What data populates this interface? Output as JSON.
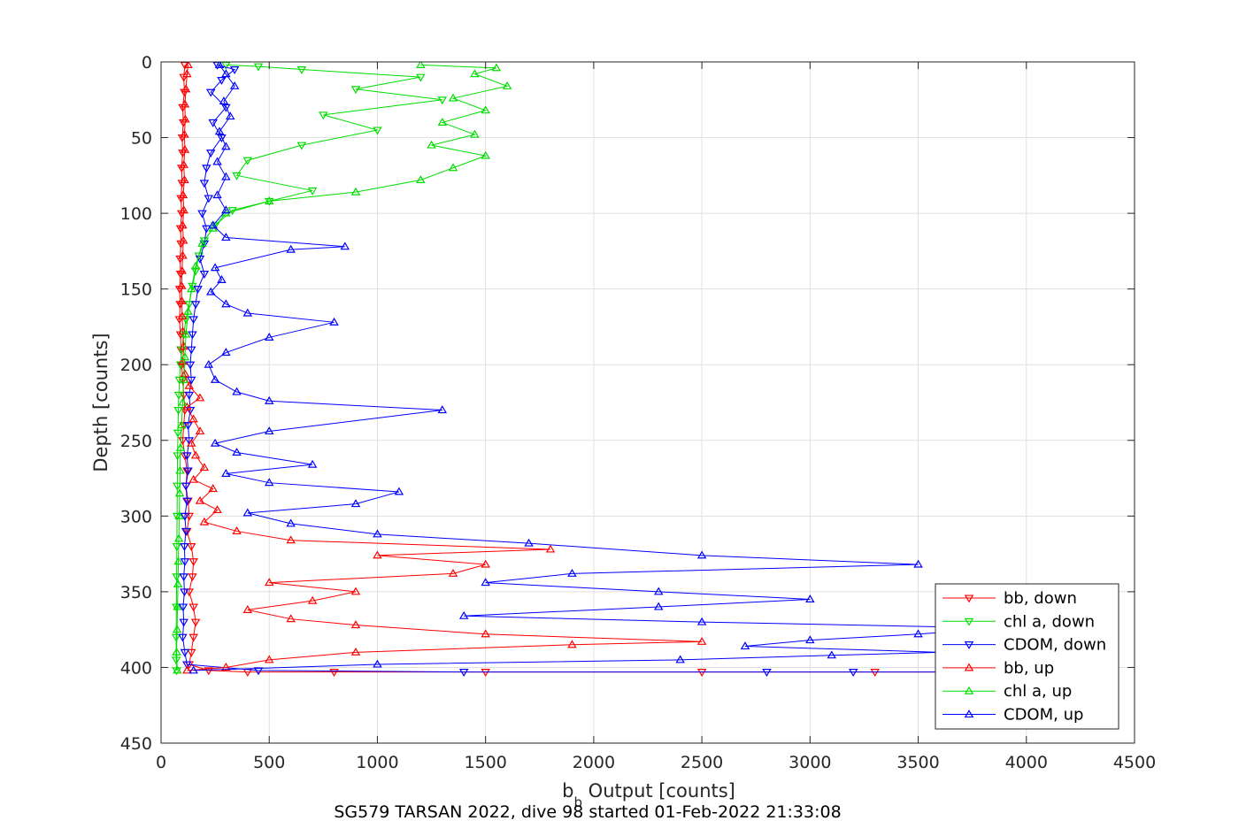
{
  "chart_data": {
    "type": "line",
    "title": "",
    "caption": "SG579 TARSAN 2022, dive 98 started 01-Feb-2022 21:33:08",
    "xlabel_main": "b",
    "xlabel_sub": "b",
    "xlabel_rest": " Output [counts]",
    "ylabel": "Depth [counts]",
    "xlim": [
      0,
      4500
    ],
    "ylim": [
      0,
      450
    ],
    "y_reversed": true,
    "grid": true,
    "legend_position": "bottom-right",
    "xticks": [
      "0",
      "500",
      "1000",
      "1500",
      "2000",
      "2500",
      "3000",
      "3500",
      "4000",
      "4500"
    ],
    "yticks": [
      "0",
      "50",
      "100",
      "150",
      "200",
      "250",
      "300",
      "350",
      "400",
      "450"
    ],
    "series": [
      {
        "name": "bb, down",
        "color": "#ff0000",
        "marker": "triangle-down",
        "points": [
          [
            110,
            2
          ],
          [
            105,
            10
          ],
          [
            108,
            20
          ],
          [
            100,
            30
          ],
          [
            103,
            40
          ],
          [
            98,
            50
          ],
          [
            100,
            60
          ],
          [
            95,
            70
          ],
          [
            97,
            80
          ],
          [
            92,
            90
          ],
          [
            95,
            100
          ],
          [
            90,
            110
          ],
          [
            92,
            120
          ],
          [
            88,
            130
          ],
          [
            90,
            140
          ],
          [
            86,
            150
          ],
          [
            88,
            160
          ],
          [
            85,
            170
          ],
          [
            90,
            180
          ],
          [
            92,
            190
          ],
          [
            95,
            200
          ],
          [
            100,
            210
          ],
          [
            105,
            220
          ],
          [
            110,
            230
          ],
          [
            105,
            240
          ],
          [
            100,
            250
          ],
          [
            110,
            260
          ],
          [
            120,
            270
          ],
          [
            115,
            280
          ],
          [
            125,
            290
          ],
          [
            130,
            300
          ],
          [
            120,
            310
          ],
          [
            140,
            320
          ],
          [
            150,
            330
          ],
          [
            145,
            340
          ],
          [
            130,
            350
          ],
          [
            150,
            360
          ],
          [
            160,
            370
          ],
          [
            150,
            380
          ],
          [
            140,
            390
          ],
          [
            130,
            398
          ],
          [
            220,
            402
          ],
          [
            400,
            403
          ],
          [
            800,
            403
          ],
          [
            1500,
            403
          ],
          [
            2500,
            403
          ],
          [
            3300,
            403
          ],
          [
            4000,
            403
          ]
        ]
      },
      {
        "name": "chl a, down",
        "color": "#00dd00",
        "marker": "triangle-down",
        "points": [
          [
            300,
            2
          ],
          [
            450,
            3
          ],
          [
            650,
            5
          ],
          [
            1200,
            10
          ],
          [
            900,
            18
          ],
          [
            1300,
            25
          ],
          [
            750,
            35
          ],
          [
            1000,
            45
          ],
          [
            650,
            55
          ],
          [
            400,
            65
          ],
          [
            350,
            75
          ],
          [
            700,
            85
          ],
          [
            500,
            92
          ],
          [
            330,
            98
          ],
          [
            250,
            108
          ],
          [
            200,
            118
          ],
          [
            175,
            128
          ],
          [
            160,
            138
          ],
          [
            145,
            148
          ],
          [
            130,
            160
          ],
          [
            115,
            170
          ],
          [
            105,
            180
          ],
          [
            95,
            190
          ],
          [
            90,
            200
          ],
          [
            85,
            210
          ],
          [
            82,
            220
          ],
          [
            80,
            230
          ],
          [
            78,
            245
          ],
          [
            76,
            260
          ],
          [
            75,
            280
          ],
          [
            74,
            300
          ],
          [
            73,
            320
          ],
          [
            72,
            340
          ],
          [
            71,
            360
          ],
          [
            70,
            380
          ],
          [
            70,
            395
          ],
          [
            72,
            402
          ]
        ]
      },
      {
        "name": "CDOM, down",
        "color": "#0000ff",
        "marker": "triangle-down",
        "points": [
          [
            260,
            2
          ],
          [
            340,
            5
          ],
          [
            280,
            12
          ],
          [
            230,
            20
          ],
          [
            300,
            30
          ],
          [
            240,
            40
          ],
          [
            280,
            50
          ],
          [
            230,
            60
          ],
          [
            210,
            70
          ],
          [
            200,
            80
          ],
          [
            220,
            90
          ],
          [
            190,
            100
          ],
          [
            210,
            110
          ],
          [
            200,
            120
          ],
          [
            180,
            130
          ],
          [
            200,
            140
          ],
          [
            170,
            150
          ],
          [
            160,
            160
          ],
          [
            150,
            170
          ],
          [
            145,
            180
          ],
          [
            140,
            190
          ],
          [
            135,
            200
          ],
          [
            140,
            210
          ],
          [
            130,
            220
          ],
          [
            135,
            230
          ],
          [
            125,
            240
          ],
          [
            130,
            250
          ],
          [
            120,
            260
          ],
          [
            125,
            270
          ],
          [
            115,
            280
          ],
          [
            120,
            290
          ],
          [
            110,
            300
          ],
          [
            115,
            310
          ],
          [
            108,
            320
          ],
          [
            110,
            330
          ],
          [
            105,
            340
          ],
          [
            108,
            350
          ],
          [
            102,
            360
          ],
          [
            105,
            370
          ],
          [
            100,
            380
          ],
          [
            110,
            390
          ],
          [
            120,
            398
          ],
          [
            450,
            402
          ],
          [
            1400,
            403
          ],
          [
            2800,
            403
          ],
          [
            3200,
            403
          ],
          [
            3600,
            403
          ]
        ]
      },
      {
        "name": "bb, up",
        "color": "#ff0000",
        "marker": "triangle-up",
        "points": [
          [
            120,
            402
          ],
          [
            300,
            400
          ],
          [
            500,
            395
          ],
          [
            900,
            390
          ],
          [
            1900,
            385
          ],
          [
            2500,
            383
          ],
          [
            1500,
            378
          ],
          [
            900,
            372
          ],
          [
            600,
            368
          ],
          [
            400,
            362
          ],
          [
            700,
            356
          ],
          [
            900,
            350
          ],
          [
            500,
            344
          ],
          [
            1350,
            338
          ],
          [
            1500,
            332
          ],
          [
            1000,
            326
          ],
          [
            1800,
            322
          ],
          [
            600,
            316
          ],
          [
            350,
            310
          ],
          [
            200,
            304
          ],
          [
            260,
            296
          ],
          [
            180,
            290
          ],
          [
            240,
            282
          ],
          [
            150,
            276
          ],
          [
            200,
            268
          ],
          [
            160,
            260
          ],
          [
            140,
            252
          ],
          [
            180,
            244
          ],
          [
            150,
            236
          ],
          [
            120,
            228
          ],
          [
            180,
            222
          ],
          [
            130,
            214
          ],
          [
            110,
            206
          ],
          [
            100,
            198
          ],
          [
            105,
            188
          ],
          [
            100,
            178
          ],
          [
            98,
            168
          ],
          [
            96,
            158
          ],
          [
            95,
            148
          ],
          [
            97,
            138
          ],
          [
            100,
            128
          ],
          [
            103,
            118
          ],
          [
            100,
            108
          ],
          [
            105,
            98
          ],
          [
            102,
            88
          ],
          [
            108,
            78
          ],
          [
            105,
            68
          ],
          [
            110,
            58
          ],
          [
            108,
            48
          ],
          [
            112,
            38
          ],
          [
            110,
            28
          ],
          [
            115,
            18
          ],
          [
            120,
            8
          ],
          [
            125,
            2
          ]
        ]
      },
      {
        "name": "chl a, up",
        "color": "#00dd00",
        "marker": "triangle-up",
        "points": [
          [
            75,
            402
          ],
          [
            72,
            390
          ],
          [
            74,
            375
          ],
          [
            76,
            360
          ],
          [
            78,
            345
          ],
          [
            80,
            330
          ],
          [
            82,
            315
          ],
          [
            84,
            300
          ],
          [
            86,
            285
          ],
          [
            88,
            270
          ],
          [
            90,
            255
          ],
          [
            95,
            240
          ],
          [
            100,
            225
          ],
          [
            105,
            210
          ],
          [
            110,
            195
          ],
          [
            115,
            180
          ],
          [
            125,
            165
          ],
          [
            140,
            150
          ],
          [
            160,
            135
          ],
          [
            190,
            120
          ],
          [
            240,
            110
          ],
          [
            300,
            100
          ],
          [
            500,
            92
          ],
          [
            900,
            86
          ],
          [
            1200,
            78
          ],
          [
            1350,
            70
          ],
          [
            1500,
            62
          ],
          [
            1250,
            55
          ],
          [
            1450,
            48
          ],
          [
            1300,
            40
          ],
          [
            1500,
            32
          ],
          [
            1350,
            24
          ],
          [
            1600,
            16
          ],
          [
            1450,
            8
          ],
          [
            1550,
            4
          ],
          [
            1200,
            2
          ]
        ]
      },
      {
        "name": "CDOM, up",
        "color": "#0000ff",
        "marker": "triangle-up",
        "points": [
          [
            150,
            402
          ],
          [
            1000,
            398
          ],
          [
            2400,
            395
          ],
          [
            3100,
            392
          ],
          [
            3600,
            390
          ],
          [
            2700,
            386
          ],
          [
            3000,
            382
          ],
          [
            3500,
            378
          ],
          [
            3900,
            374
          ],
          [
            2500,
            370
          ],
          [
            1400,
            366
          ],
          [
            2300,
            360
          ],
          [
            3000,
            355
          ],
          [
            2300,
            350
          ],
          [
            1500,
            344
          ],
          [
            1900,
            338
          ],
          [
            3500,
            332
          ],
          [
            2500,
            326
          ],
          [
            1700,
            318
          ],
          [
            1000,
            312
          ],
          [
            600,
            305
          ],
          [
            400,
            298
          ],
          [
            900,
            292
          ],
          [
            1100,
            284
          ],
          [
            500,
            278
          ],
          [
            300,
            272
          ],
          [
            700,
            266
          ],
          [
            350,
            258
          ],
          [
            250,
            252
          ],
          [
            500,
            244
          ],
          [
            1300,
            230
          ],
          [
            500,
            224
          ],
          [
            350,
            218
          ],
          [
            250,
            210
          ],
          [
            220,
            200
          ],
          [
            300,
            192
          ],
          [
            500,
            182
          ],
          [
            800,
            172
          ],
          [
            400,
            166
          ],
          [
            300,
            160
          ],
          [
            230,
            152
          ],
          [
            280,
            144
          ],
          [
            250,
            136
          ],
          [
            600,
            124
          ],
          [
            850,
            122
          ],
          [
            300,
            116
          ],
          [
            240,
            108
          ],
          [
            300,
            98
          ],
          [
            260,
            88
          ],
          [
            300,
            76
          ],
          [
            260,
            66
          ],
          [
            300,
            56
          ],
          [
            270,
            46
          ],
          [
            320,
            36
          ],
          [
            290,
            26
          ],
          [
            340,
            16
          ],
          [
            300,
            8
          ],
          [
            270,
            2
          ]
        ]
      }
    ]
  }
}
